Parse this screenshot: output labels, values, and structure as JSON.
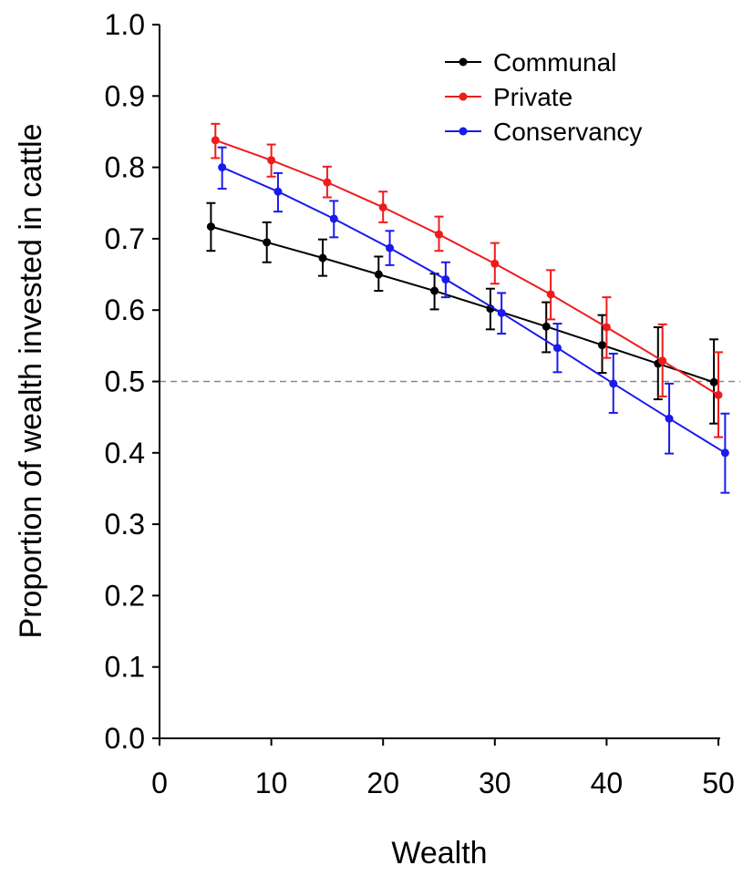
{
  "chart_data": {
    "type": "line",
    "title": "",
    "xlabel": "Wealth",
    "ylabel": "Proportion of wealth invested in cattle",
    "xlim": [
      0,
      50
    ],
    "ylim": [
      0.0,
      1.0
    ],
    "xticks": [
      "0",
      "10",
      "20",
      "30",
      "40",
      "50"
    ],
    "yticks": [
      "0.0",
      "0.1",
      "0.2",
      "0.3",
      "0.4",
      "0.5",
      "0.6",
      "0.7",
      "0.8",
      "0.9",
      "1.0"
    ],
    "reference_line": {
      "y": 0.5,
      "style": "dashed",
      "color": "#888888"
    },
    "grid": false,
    "legend_position": "top-right",
    "series": [
      {
        "name": "Communal",
        "color": "#000000",
        "x": [
          4.6,
          9.6,
          14.6,
          19.6,
          24.6,
          29.6,
          34.6,
          39.6,
          44.6,
          49.6
        ],
        "y": [
          0.717,
          0.695,
          0.673,
          0.65,
          0.627,
          0.602,
          0.577,
          0.551,
          0.525,
          0.499
        ],
        "err_low": [
          0.683,
          0.667,
          0.648,
          0.627,
          0.601,
          0.573,
          0.541,
          0.512,
          0.475,
          0.441
        ],
        "err_high": [
          0.75,
          0.723,
          0.699,
          0.675,
          0.651,
          0.63,
          0.611,
          0.593,
          0.576,
          0.559
        ]
      },
      {
        "name": "Private",
        "color": "#ee1c1c",
        "x": [
          5.0,
          10.0,
          15.0,
          20.0,
          25.0,
          30.0,
          35.0,
          40.0,
          45.0,
          50.0
        ],
        "y": [
          0.838,
          0.81,
          0.779,
          0.744,
          0.706,
          0.665,
          0.622,
          0.576,
          0.529,
          0.481
        ],
        "err_low": [
          0.813,
          0.787,
          0.758,
          0.723,
          0.683,
          0.637,
          0.587,
          0.533,
          0.479,
          0.422
        ],
        "err_high": [
          0.861,
          0.832,
          0.801,
          0.766,
          0.731,
          0.694,
          0.656,
          0.618,
          0.58,
          0.541
        ]
      },
      {
        "name": "Conservancy",
        "color": "#1a1aee",
        "x": [
          5.6,
          10.6,
          15.6,
          20.6,
          25.6,
          30.6,
          35.6,
          40.6,
          45.6,
          50.6
        ],
        "y": [
          0.8,
          0.766,
          0.728,
          0.687,
          0.643,
          0.596,
          0.547,
          0.497,
          0.448,
          0.4
        ],
        "err_low": [
          0.77,
          0.738,
          0.702,
          0.663,
          0.618,
          0.567,
          0.513,
          0.456,
          0.399,
          0.344
        ],
        "err_high": [
          0.828,
          0.792,
          0.753,
          0.711,
          0.667,
          0.624,
          0.581,
          0.539,
          0.497,
          0.455
        ]
      }
    ]
  }
}
